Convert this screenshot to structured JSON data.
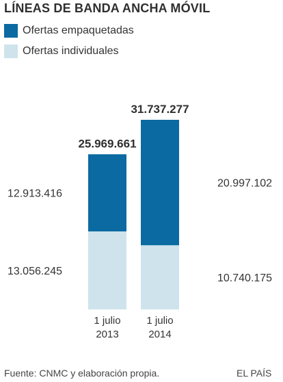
{
  "title": "LÍNEAS DE BANDA ANCHA MÓVIL",
  "legend": [
    {
      "label": "Ofertas empaquetadas",
      "color": "#0a6aa1"
    },
    {
      "label": "Ofertas individuales",
      "color": "#cfe3ec"
    }
  ],
  "chart_data": {
    "type": "bar",
    "stacked": true,
    "categories": [
      [
        "1 julio",
        "2013"
      ],
      [
        "1 julio",
        "2014"
      ]
    ],
    "series": [
      {
        "name": "Ofertas individuales",
        "values": [
          13056245,
          10740175
        ],
        "labels": [
          "13.056.245",
          "10.740.175"
        ],
        "color": "#cfe3ec"
      },
      {
        "name": "Ofertas empaquetadas",
        "values": [
          12913416,
          20997102
        ],
        "labels": [
          "12.913.416",
          "20.997.102"
        ],
        "color": "#0a6aa1"
      }
    ],
    "totals": [
      25969661,
      31737277
    ],
    "total_labels": [
      "25.969.661",
      "31.737.277"
    ],
    "grid": false,
    "legend_position": "top-left"
  },
  "footer": {
    "source": "Fuente: CNMC y elaboración propia.",
    "credit": "EL PAÍS"
  }
}
